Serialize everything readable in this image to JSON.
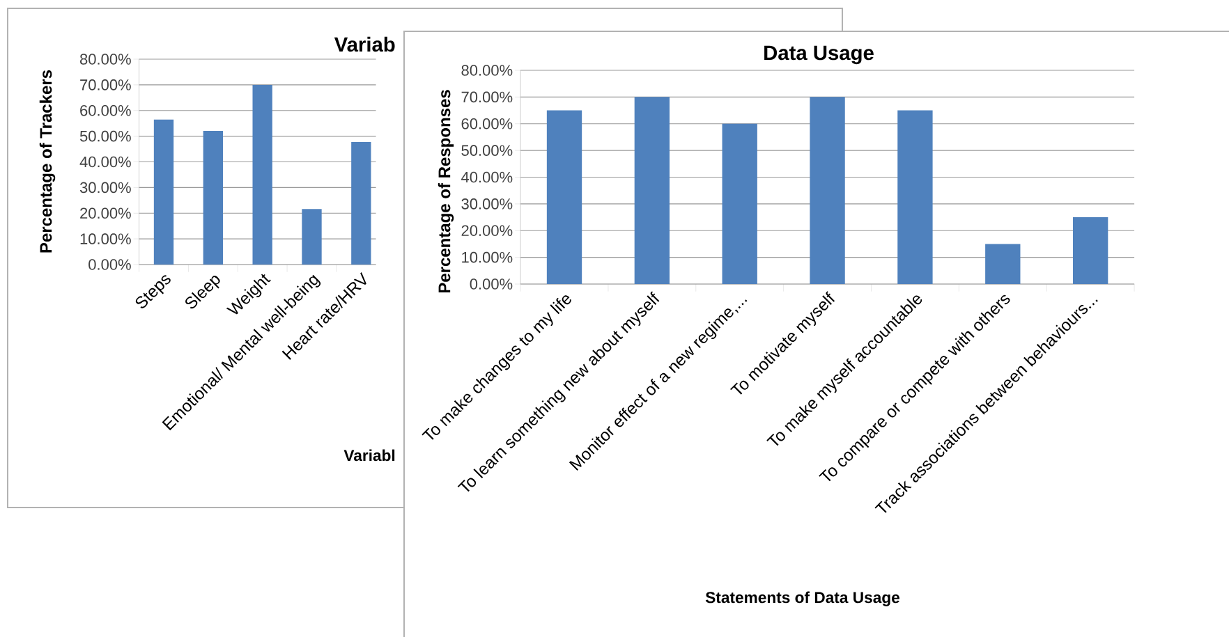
{
  "chart_data": [
    {
      "type": "bar",
      "title": "Variab",
      "xlabel": "Variabl",
      "ylabel": "Percentage of Trackers",
      "categories": [
        "Steps",
        "Sleep",
        "Weight",
        "Emotional/ Mental well-being",
        "Heart rate/HRV"
      ],
      "values": [
        56.5,
        52.1,
        70,
        21.6,
        47.7
      ],
      "color": "#4f81bd",
      "ylim": [
        0,
        80
      ],
      "yticks": [
        {
          "value": 0,
          "label": "0.00%"
        },
        {
          "value": 10,
          "label": "10.00%"
        },
        {
          "value": 20,
          "label": "20.00%"
        },
        {
          "value": 30,
          "label": "30.00%"
        },
        {
          "value": 40,
          "label": "40.00%"
        },
        {
          "value": 50,
          "label": "50.00%"
        },
        {
          "value": 60,
          "label": "60.00%"
        },
        {
          "value": 70,
          "label": "70.00%"
        },
        {
          "value": 80,
          "label": "80.00%"
        }
      ],
      "grid": "y"
    },
    {
      "type": "bar",
      "title": "Data Usage",
      "xlabel": "Statements of Data Usage",
      "ylabel": "Percentage of Responses",
      "categories": [
        "To make changes to my life",
        "To learn something new about myself",
        "Monitor effect of a new regime,...",
        "To motivate myself",
        "To make myself accountable",
        "To compare or compete with others",
        "Track associations between behaviours..."
      ],
      "values": [
        65,
        70,
        60,
        70,
        65,
        15,
        25
      ],
      "color": "#4f81bd",
      "ylim": [
        0,
        80
      ],
      "yticks": [
        {
          "value": 0,
          "label": "0.00%"
        },
        {
          "value": 10,
          "label": "10.00%"
        },
        {
          "value": 20,
          "label": "20.00%"
        },
        {
          "value": 30,
          "label": "30.00%"
        },
        {
          "value": 40,
          "label": "40.00%"
        },
        {
          "value": 50,
          "label": "50.00%"
        },
        {
          "value": 60,
          "label": "60.00%"
        },
        {
          "value": 70,
          "label": "70.00%"
        },
        {
          "value": 80,
          "label": "80.00%"
        }
      ],
      "grid": "y"
    }
  ]
}
